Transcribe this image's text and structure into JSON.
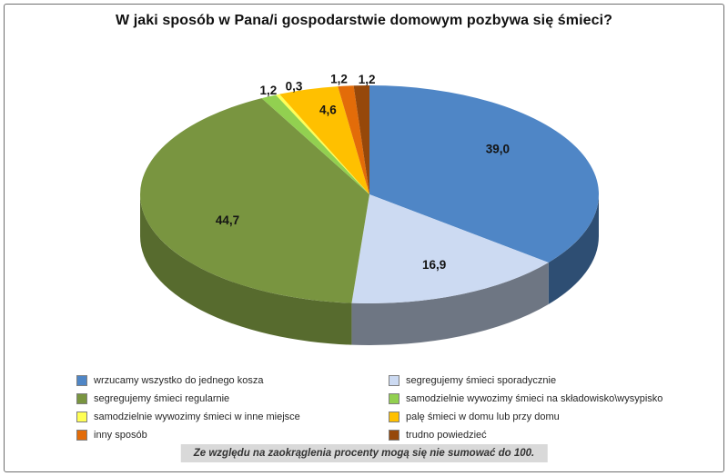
{
  "chart_data": {
    "type": "pie",
    "style": "3d",
    "title": "W jaki sposób w Pana/i gospodarstwie domowym pozbywa się śmieci?",
    "note": "Ze względu na zaokrąglenia procenty mogą się nie sumować do 100.",
    "unit": "%",
    "start_angle": 0,
    "direction": "clockwise",
    "slices": [
      {
        "label": "wrzucamy wszystko do jednego kosza",
        "value": 39.0,
        "display": "39,0",
        "color": "#4f86c6"
      },
      {
        "label": "segregujemy śmieci sporadycznie",
        "value": 16.9,
        "display": "16,9",
        "color": "#ccdaf2"
      },
      {
        "label": "segregujemy śmieci regularnie",
        "value": 44.7,
        "display": "44,7",
        "color": "#799540"
      },
      {
        "label": "samodzielnie wywozimy śmieci na składowisko\\wysypisko",
        "value": 1.2,
        "display": "1,2",
        "color": "#92d050"
      },
      {
        "label": "samodzielnie wywozimy śmieci w inne miejsce",
        "value": 0.3,
        "display": "0,3",
        "color": "#ffff55"
      },
      {
        "label": "palę śmieci w domu lub przy domu",
        "value": 4.6,
        "display": "4,6",
        "color": "#ffc000"
      },
      {
        "label": "inny sposób",
        "value": 1.2,
        "display": "1,2",
        "color": "#e36c09"
      },
      {
        "label": "trudno powiedzieć",
        "value": 1.2,
        "display": "1,2",
        "color": "#96480a"
      }
    ],
    "legend_columns": [
      [
        0,
        2,
        4,
        6
      ],
      [
        1,
        3,
        5,
        7
      ]
    ],
    "legend_position": "bottom"
  }
}
